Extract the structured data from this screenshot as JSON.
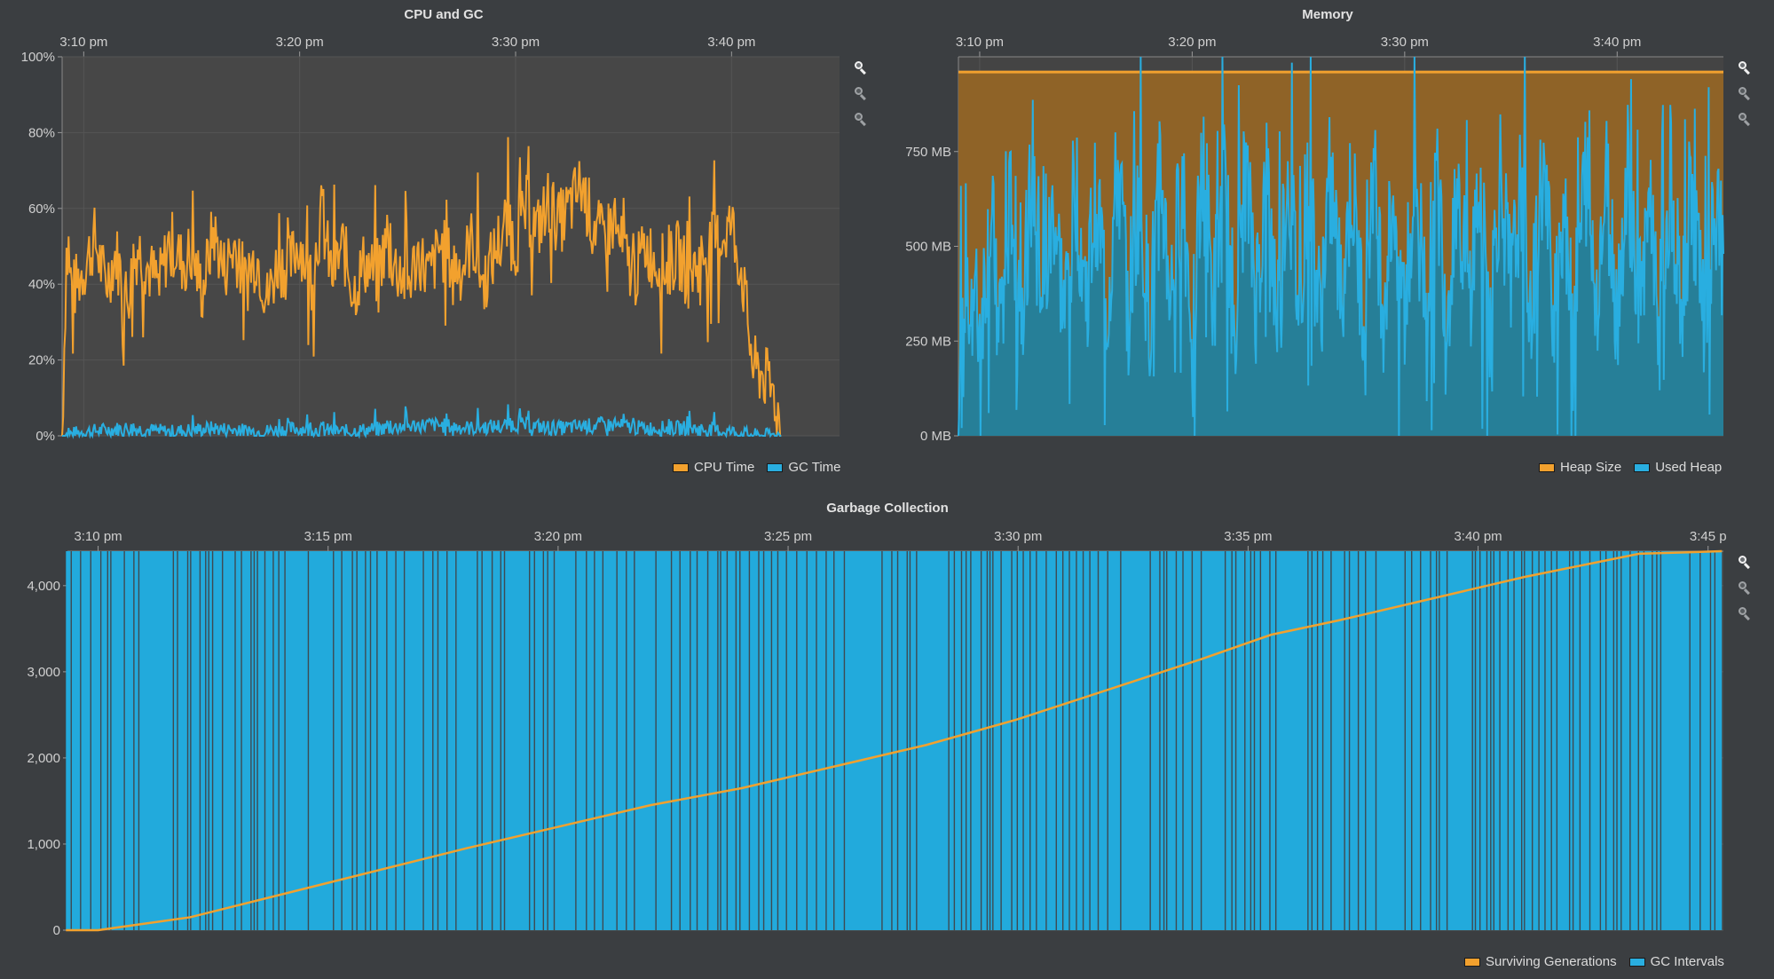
{
  "colors": {
    "cpu": "#f2a12e",
    "gc": "#29aee0",
    "heap_fill": "#8f6327",
    "used_fill": "#267f98",
    "plot_bg": "#474747",
    "plot_bg_mem": "#444",
    "gc_bar": "#22aadc"
  },
  "panels": {
    "cpu": {
      "title": "CPU and GC",
      "legend": [
        {
          "label": "CPU Time",
          "color": "#f2a12e"
        },
        {
          "label": "GC Time",
          "color": "#29aee0"
        }
      ]
    },
    "memory": {
      "title": "Memory",
      "legend": [
        {
          "label": "Heap Size",
          "color": "#f2a12e"
        },
        {
          "label": "Used Heap",
          "color": "#29aee0"
        }
      ]
    },
    "gc": {
      "title": "Garbage Collection",
      "legend": [
        {
          "label": "Surviving Generations",
          "color": "#f2a12e"
        },
        {
          "label": "GC Intervals",
          "color": "#29aee0"
        }
      ]
    }
  },
  "zoom_icons": [
    "zoom-fit-icon",
    "zoom-in-icon",
    "zoom-out-icon"
  ],
  "chart_data": [
    {
      "type": "line",
      "title": "CPU and GC",
      "x_ticks": [
        "3:10 pm",
        "3:20 pm",
        "3:30 pm",
        "3:40 pm"
      ],
      "y_ticks": [
        "0%",
        "20%",
        "40%",
        "60%",
        "80%",
        "100%"
      ],
      "ylim": [
        0,
        100
      ],
      "xlim": [
        "3:09 pm",
        "3:45 pm"
      ],
      "x_tick_values": [
        10,
        20,
        30,
        40
      ],
      "series": [
        {
          "name": "CPU Time",
          "values": [
            [
              9,
              0
            ],
            [
              9.2,
              48
            ],
            [
              9.5,
              38
            ],
            [
              10,
              44
            ],
            [
              10.5,
              52
            ],
            [
              11,
              40
            ],
            [
              11.5,
              48
            ],
            [
              12,
              36
            ],
            [
              12.5,
              50
            ],
            [
              13,
              44
            ],
            [
              13.5,
              40
            ],
            [
              14,
              52
            ],
            [
              14.5,
              46
            ],
            [
              15,
              48
            ],
            [
              15.5,
              38
            ],
            [
              16,
              54
            ],
            [
              16.5,
              44
            ],
            [
              17,
              50
            ],
            [
              17.5,
              40
            ],
            [
              18,
              48
            ],
            [
              18.5,
              36
            ],
            [
              19,
              46
            ],
            [
              19.5,
              44
            ],
            [
              20,
              52
            ],
            [
              20.5,
              40
            ],
            [
              21,
              58
            ],
            [
              21.5,
              42
            ],
            [
              22,
              50
            ],
            [
              22.5,
              38
            ],
            [
              23,
              46
            ],
            [
              23.5,
              42
            ],
            [
              24,
              50
            ],
            [
              24.5,
              44
            ],
            [
              25,
              40
            ],
            [
              25.5,
              48
            ],
            [
              26,
              42
            ],
            [
              26.5,
              50
            ],
            [
              27,
              46
            ],
            [
              27.5,
              44
            ],
            [
              28,
              52
            ],
            [
              28.5,
              40
            ],
            [
              29,
              48
            ],
            [
              29.5,
              56
            ],
            [
              30,
              50
            ],
            [
              30.5,
              60
            ],
            [
              31,
              54
            ],
            [
              31.5,
              62
            ],
            [
              32,
              56
            ],
            [
              32.5,
              60
            ],
            [
              33,
              66
            ],
            [
              33.5,
              58
            ],
            [
              34,
              52
            ],
            [
              34.5,
              56
            ],
            [
              35,
              48
            ],
            [
              35.5,
              42
            ],
            [
              36,
              50
            ],
            [
              36.5,
              46
            ],
            [
              37,
              44
            ],
            [
              37.5,
              48
            ],
            [
              38,
              42
            ],
            [
              38.5,
              46
            ],
            [
              39,
              50
            ],
            [
              39.5,
              52
            ],
            [
              40,
              56
            ],
            [
              40.5,
              42
            ],
            [
              41,
              18
            ],
            [
              41.5,
              16
            ],
            [
              42,
              10
            ],
            [
              42.3,
              0
            ]
          ]
        },
        {
          "name": "GC Time",
          "values": [
            [
              9,
              0
            ],
            [
              10,
              1
            ],
            [
              12,
              2
            ],
            [
              14,
              1
            ],
            [
              16,
              2
            ],
            [
              18,
              1
            ],
            [
              20,
              2
            ],
            [
              22,
              1
            ],
            [
              24,
              2
            ],
            [
              26,
              3
            ],
            [
              28,
              2
            ],
            [
              30,
              3
            ],
            [
              32,
              2
            ],
            [
              34,
              3
            ],
            [
              36,
              2
            ],
            [
              38,
              2
            ],
            [
              40,
              1
            ],
            [
              41,
              0
            ],
            [
              42.3,
              0
            ]
          ]
        }
      ]
    },
    {
      "type": "area",
      "title": "Memory",
      "x_ticks": [
        "3:10 pm",
        "3:20 pm",
        "3:30 pm",
        "3:40 pm"
      ],
      "y_ticks": [
        "0 MB",
        "250 MB",
        "500 MB",
        "750 MB"
      ],
      "ylim": [
        0,
        1000
      ],
      "xlim": [
        "3:09 pm",
        "3:45 pm"
      ],
      "x_tick_values": [
        10,
        20,
        30,
        40
      ],
      "series": [
        {
          "name": "Heap Size",
          "values": [
            [
              9,
              960
            ],
            [
              45,
              960
            ]
          ]
        },
        {
          "name": "Used Heap",
          "values": [
            [
              9,
              100
            ],
            [
              9.5,
              420
            ],
            [
              10,
              280
            ],
            [
              10.5,
              560
            ],
            [
              11,
              300
            ],
            [
              11.5,
              620
            ],
            [
              12,
              360
            ],
            [
              12.5,
              700
            ],
            [
              13,
              330
            ],
            [
              13.5,
              600
            ],
            [
              14,
              300
            ],
            [
              14.5,
              680
            ],
            [
              15,
              360
            ],
            [
              15.5,
              640
            ],
            [
              16,
              320
            ],
            [
              16.5,
              700
            ],
            [
              17,
              340
            ],
            [
              17.5,
              620
            ],
            [
              18,
              300
            ],
            [
              18.5,
              680
            ],
            [
              19,
              360
            ],
            [
              19.5,
              650
            ],
            [
              20,
              320
            ],
            [
              20.5,
              700
            ],
            [
              21,
              340
            ],
            [
              21.5,
              640
            ],
            [
              22,
              300
            ],
            [
              22.5,
              680
            ],
            [
              23,
              360
            ],
            [
              23.5,
              660
            ],
            [
              24,
              320
            ],
            [
              24.5,
              700
            ],
            [
              25,
              340
            ],
            [
              25.5,
              640
            ],
            [
              26,
              300
            ],
            [
              26.5,
              690
            ],
            [
              27,
              350
            ],
            [
              27.5,
              660
            ],
            [
              28,
              320
            ],
            [
              28.5,
              700
            ],
            [
              29,
              340
            ],
            [
              29.5,
              640
            ],
            [
              30,
              300
            ],
            [
              30.5,
              690
            ],
            [
              31,
              350
            ],
            [
              31.5,
              660
            ],
            [
              32,
              320
            ],
            [
              32.5,
              700
            ],
            [
              33,
              340
            ],
            [
              33.5,
              640
            ],
            [
              34,
              300
            ],
            [
              34.5,
              690
            ],
            [
              35,
              350
            ],
            [
              35.5,
              660
            ],
            [
              36,
              320
            ],
            [
              36.5,
              700
            ],
            [
              37,
              340
            ],
            [
              37.5,
              640
            ],
            [
              38,
              300
            ],
            [
              38.5,
              690
            ],
            [
              39,
              350
            ],
            [
              39.5,
              660
            ],
            [
              40,
              320
            ],
            [
              40.5,
              700
            ],
            [
              41,
              340
            ],
            [
              41.5,
              640
            ],
            [
              42,
              300
            ],
            [
              42.5,
              690
            ],
            [
              43,
              350
            ],
            [
              43.5,
              660
            ],
            [
              44,
              320
            ],
            [
              44.5,
              560
            ],
            [
              45,
              480
            ]
          ]
        }
      ]
    },
    {
      "type": "bar",
      "title": "Garbage Collection",
      "x_ticks": [
        "3:10 pm",
        "3:15 pm",
        "3:20 pm",
        "3:25 pm",
        "3:30 pm",
        "3:35 pm",
        "3:40 pm",
        "3:45 p"
      ],
      "y_ticks": [
        "0",
        "1,000",
        "2,000",
        "3,000",
        "4,000"
      ],
      "ylim": [
        0,
        4400
      ],
      "xlim": [
        "3:09:20 pm",
        "3:45:20 pm"
      ],
      "x_tick_values": [
        10,
        15,
        20,
        25,
        30,
        35,
        40,
        45
      ],
      "series": [
        {
          "name": "Surviving Generations",
          "values": [
            [
              9.3,
              0
            ],
            [
              10,
              0
            ],
            [
              12,
              150
            ],
            [
              15,
              550
            ],
            [
              18,
              950
            ],
            [
              20,
              1200
            ],
            [
              22,
              1450
            ],
            [
              24,
              1650
            ],
            [
              26,
              1900
            ],
            [
              28,
              2150
            ],
            [
              30,
              2450
            ],
            [
              32,
              2800
            ],
            [
              34,
              3150
            ],
            [
              35.5,
              3430
            ],
            [
              37,
              3600
            ],
            [
              39,
              3850
            ],
            [
              41,
              4100
            ],
            [
              43.5,
              4370
            ],
            [
              45.3,
              4400
            ]
          ]
        },
        {
          "name": "GC Intervals",
          "values": [
            [
              9.3,
              4400
            ],
            [
              45.3,
              4400
            ]
          ]
        }
      ]
    }
  ]
}
